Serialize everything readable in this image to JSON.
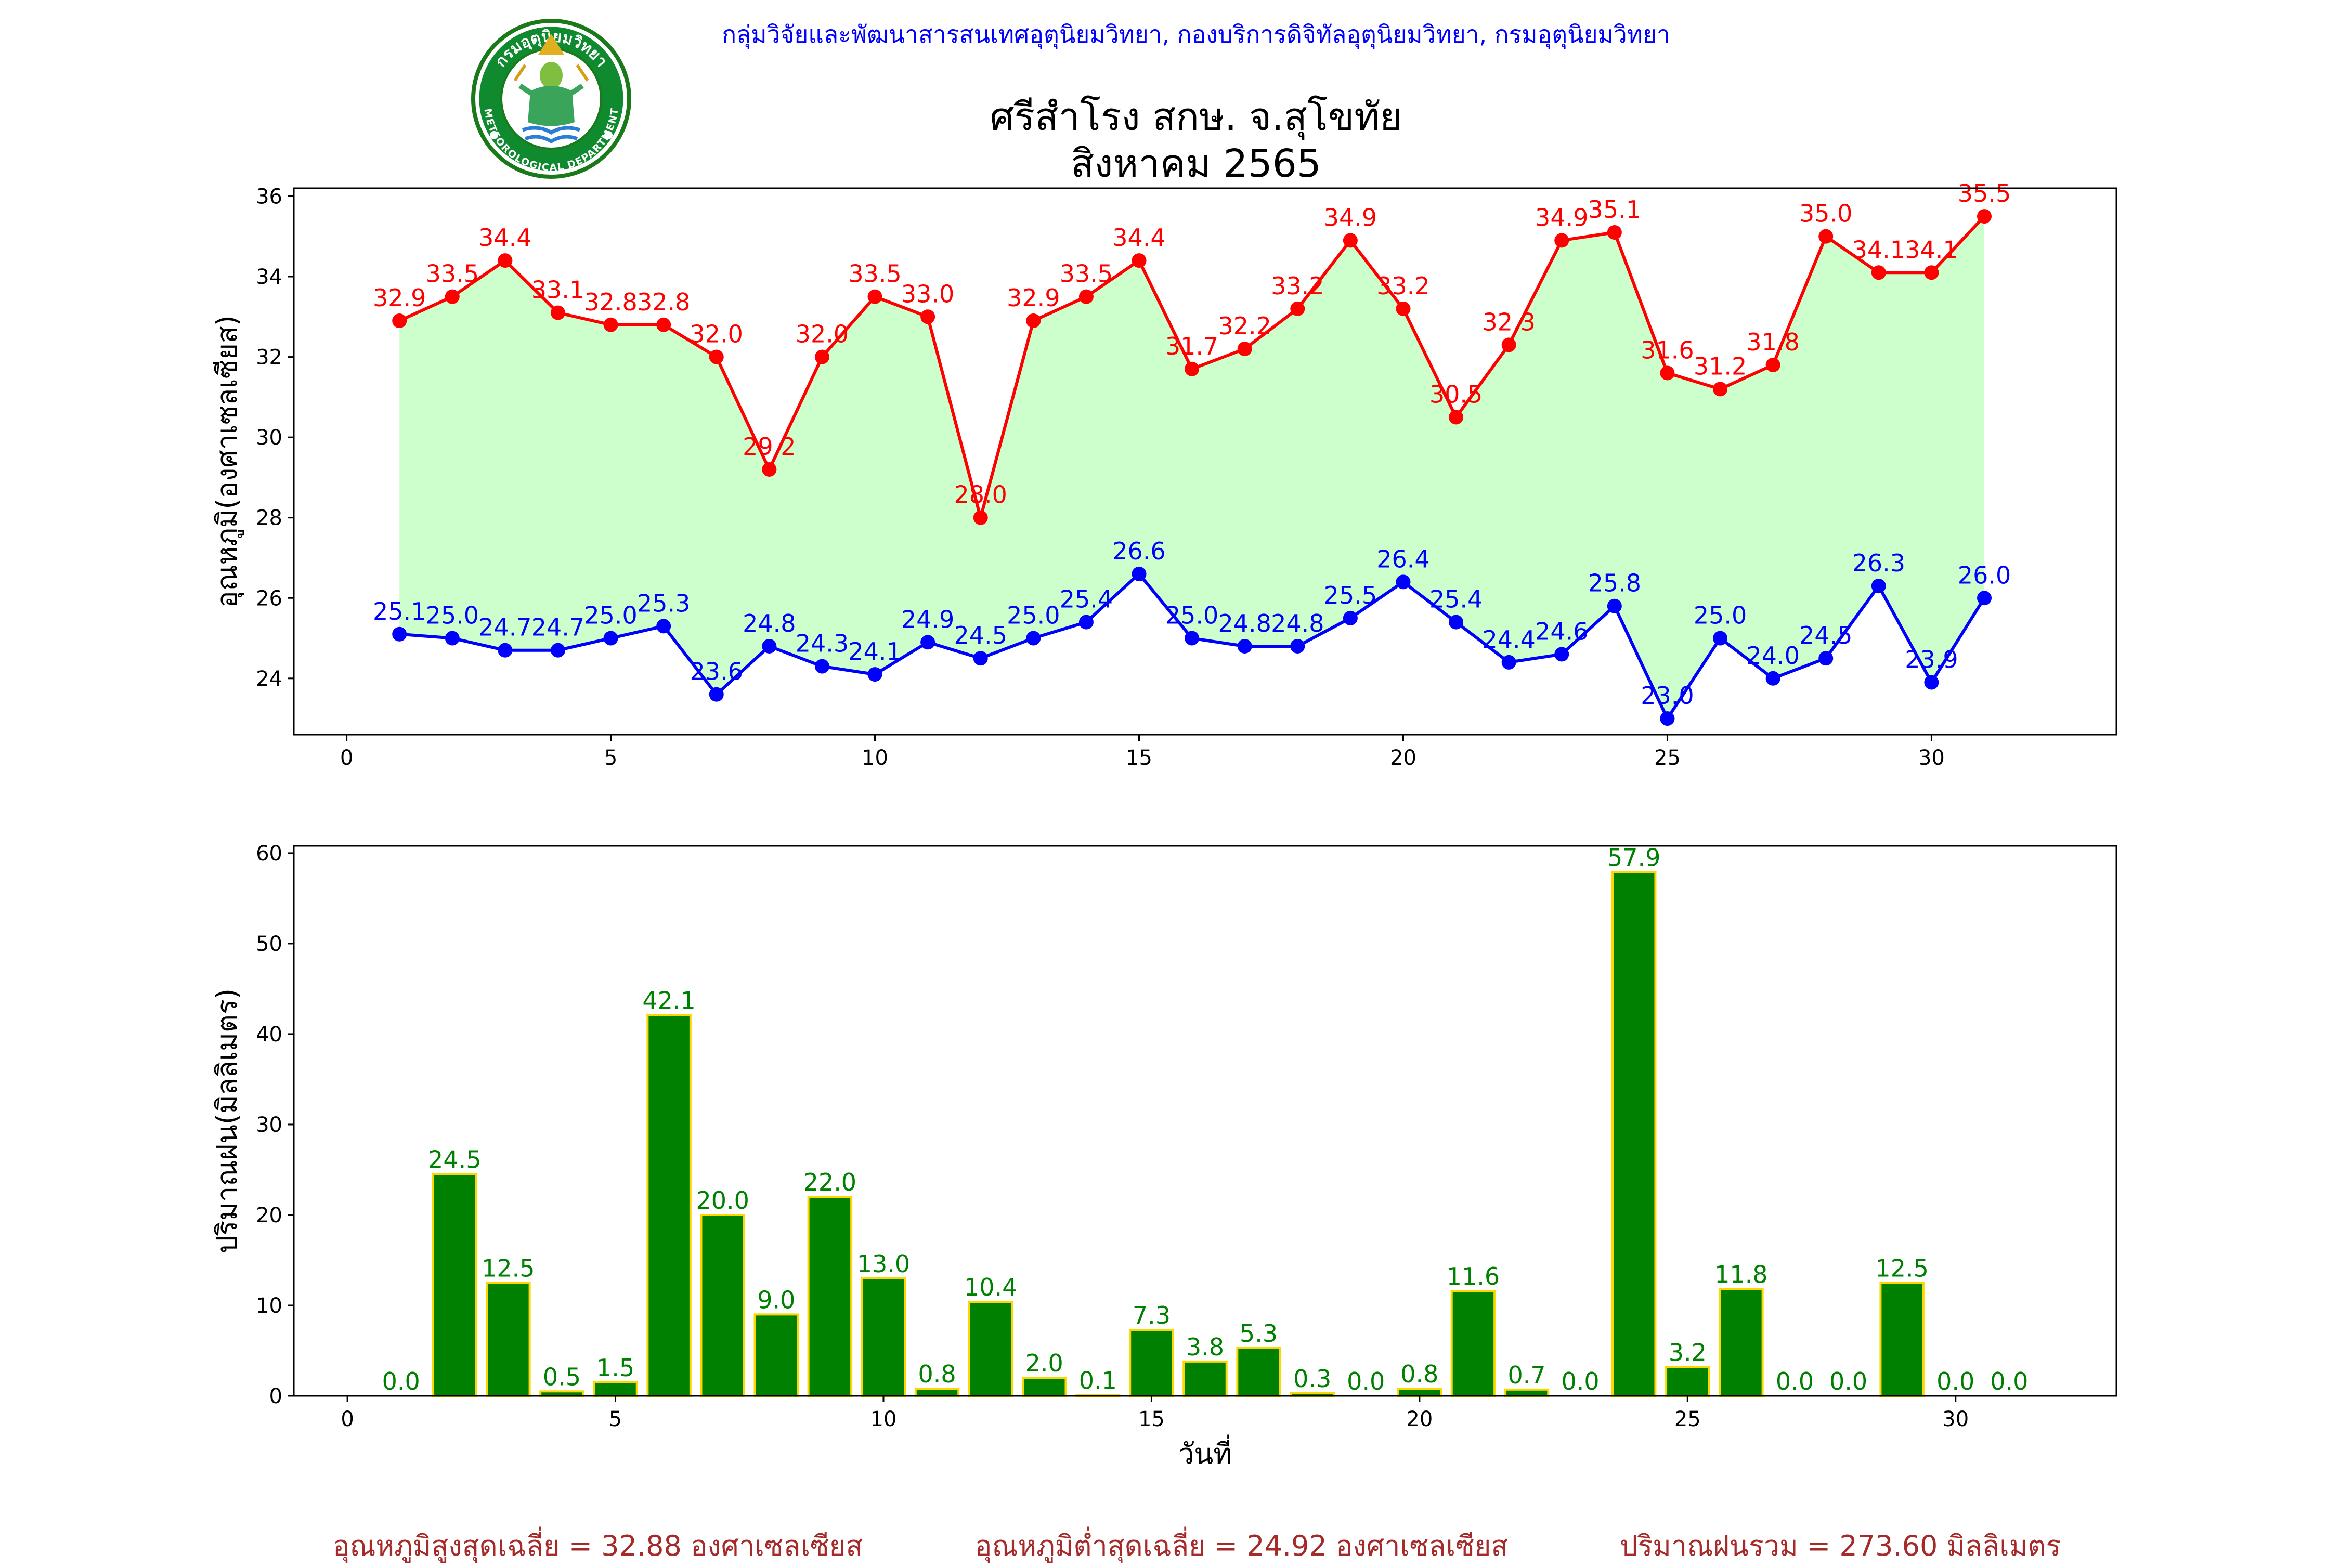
{
  "header": {
    "credit": "กลุ่มวิจัยและพัฒนาสารสนเทศอุตุนิยมวิทยา, กองบริการดิจิทัลอุตุนิยมวิทยา, กรมอุตุนิยมวิทยา",
    "title_line1": "ศรีสำโรง สกษ. จ.สุโขทัย",
    "title_line2": "สิงหาคม 2565",
    "logo_top_text": "กรมอุตุนิยมวิทยา",
    "logo_bottom_text": "METEOROLOGICAL DEPARTMENT"
  },
  "chart_data": [
    {
      "type": "line",
      "ylabel": "อุณหภูมิ(องศาเซลเซียส)",
      "xlim": [
        -1,
        33.5
      ],
      "ylim": [
        22.6,
        36.2
      ],
      "xticks": [
        0,
        5,
        10,
        15,
        20,
        25,
        30
      ],
      "yticks": [
        24,
        26,
        28,
        30,
        32,
        34,
        36
      ],
      "grid": false,
      "fill_between": {
        "color": "#ccffcc"
      },
      "x": [
        1,
        2,
        3,
        4,
        5,
        6,
        7,
        8,
        9,
        10,
        11,
        12,
        13,
        14,
        15,
        16,
        17,
        18,
        19,
        20,
        21,
        22,
        23,
        24,
        25,
        26,
        27,
        28,
        29,
        30,
        31
      ],
      "series": [
        {
          "color": "#ff0000",
          "values": [
            32.9,
            33.5,
            34.4,
            33.1,
            32.8,
            32.8,
            32.0,
            29.2,
            32.0,
            33.5,
            33.0,
            28.0,
            32.9,
            33.5,
            34.4,
            31.7,
            32.2,
            33.2,
            34.9,
            33.2,
            30.5,
            32.3,
            34.9,
            35.1,
            31.6,
            31.2,
            31.8,
            35.0,
            34.1,
            34.1,
            35.5
          ]
        },
        {
          "color": "#0000ff",
          "values": [
            25.1,
            25.0,
            24.7,
            24.7,
            25.0,
            25.3,
            23.6,
            24.8,
            24.3,
            24.1,
            24.9,
            24.5,
            25.0,
            25.4,
            26.6,
            25.0,
            24.8,
            24.8,
            25.5,
            26.4,
            25.4,
            24.4,
            24.6,
            25.8,
            23.0,
            25.0,
            24.0,
            24.5,
            26.3,
            23.9,
            26.0
          ]
        }
      ]
    },
    {
      "type": "bar",
      "xlabel": "วันที่",
      "ylabel": "ปริมาณฝน(มิลลิเมตร)",
      "xlim": [
        -1,
        33
      ],
      "ylim": [
        0,
        60.8
      ],
      "xticks": [
        0,
        5,
        10,
        15,
        20,
        25,
        30
      ],
      "yticks": [
        0,
        10,
        20,
        30,
        40,
        50,
        60
      ],
      "grid": false,
      "bar_color": "#008000",
      "edge_color": "#ffd700",
      "label_color": "#008000",
      "x": [
        1,
        2,
        3,
        4,
        5,
        6,
        7,
        8,
        9,
        10,
        11,
        12,
        13,
        14,
        15,
        16,
        17,
        18,
        19,
        20,
        21,
        22,
        23,
        24,
        25,
        26,
        27,
        28,
        29,
        30,
        31
      ],
      "values": [
        0.0,
        24.5,
        12.5,
        0.5,
        1.5,
        42.1,
        20.0,
        9.0,
        22.0,
        13.0,
        0.8,
        10.4,
        2.0,
        0.1,
        7.3,
        3.8,
        5.3,
        0.3,
        0.0,
        0.8,
        11.6,
        0.7,
        0.0,
        57.9,
        3.2,
        11.8,
        0.0,
        0.0,
        12.5,
        0.0,
        0.0
      ]
    }
  ],
  "summary": {
    "max_avg": "อุณหภูมิสูงสุดเฉลี่ย = 32.88 องศาเซลเซียส",
    "min_avg": "อุณหภูมิต่ำสุดเฉลี่ย = 24.92 องศาเซลเซียส",
    "rain_total": "ปริมาณฝนรวม = 273.60 มิลลิเมตร"
  }
}
